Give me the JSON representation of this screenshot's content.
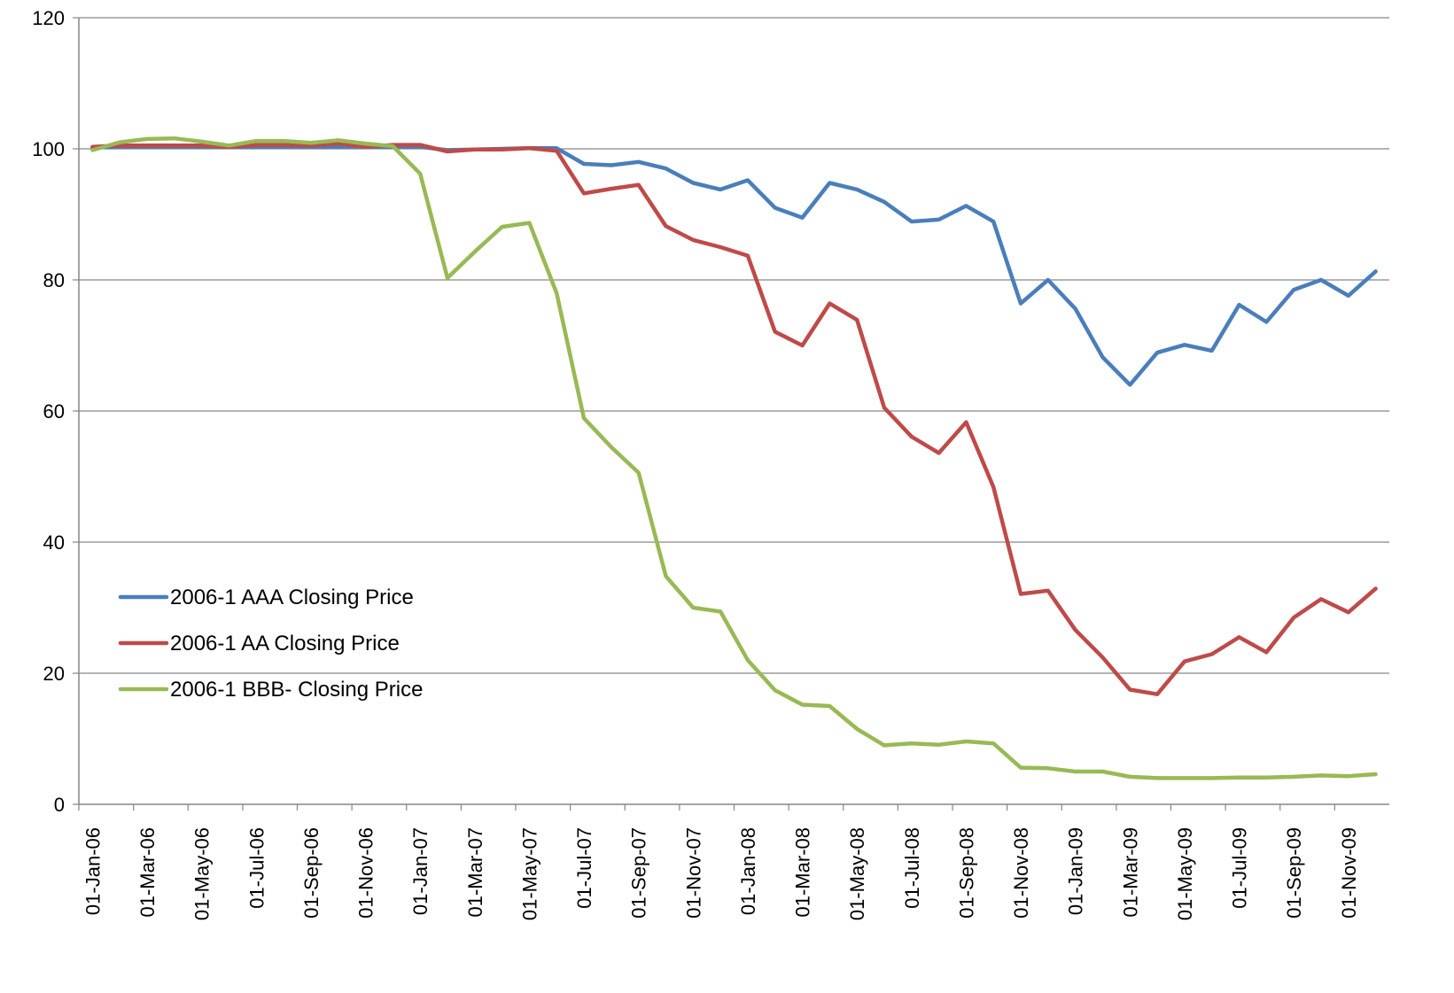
{
  "chart_data": {
    "type": "line",
    "title": "",
    "xlabel": "",
    "ylabel": "",
    "ylim": [
      0,
      120
    ],
    "y_ticks": [
      "0",
      "20",
      "40",
      "60",
      "80",
      "100",
      "120"
    ],
    "x_tick_labels": [
      "01-Jan-06",
      "01-Mar-06",
      "01-May-06",
      "01-Jul-06",
      "01-Sep-06",
      "01-Nov-06",
      "01-Jan-07",
      "01-Mar-07",
      "01-May-07",
      "01-Jul-07",
      "01-Sep-07",
      "01-Nov-07",
      "01-Jan-08",
      "01-Mar-08",
      "01-May-08",
      "01-Jul-08",
      "01-Sep-08",
      "01-Nov-08",
      "01-Jan-09",
      "01-Mar-09",
      "01-May-09",
      "01-Jul-09",
      "01-Sep-09",
      "01-Nov-09"
    ],
    "x": [
      "Jan-06",
      "Feb-06",
      "Mar-06",
      "Apr-06",
      "May-06",
      "Jun-06",
      "Jul-06",
      "Aug-06",
      "Sep-06",
      "Oct-06",
      "Nov-06",
      "Dec-06",
      "Jan-07",
      "Feb-07",
      "Mar-07",
      "Apr-07",
      "May-07",
      "Jun-07",
      "Jul-07",
      "Aug-07",
      "Sep-07",
      "Oct-07",
      "Nov-07",
      "Dec-07",
      "Jan-08",
      "Feb-08",
      "Mar-08",
      "Apr-08",
      "May-08",
      "Jun-08",
      "Jul-08",
      "Aug-08",
      "Sep-08",
      "Oct-08",
      "Nov-08",
      "Dec-08",
      "Jan-09",
      "Feb-09",
      "Mar-09",
      "Apr-09",
      "May-09",
      "Jun-09",
      "Jul-09",
      "Aug-09",
      "Sep-09",
      "Oct-09",
      "Nov-09",
      "Dec-09"
    ],
    "grid": true,
    "legend_position": "lower-left",
    "series": [
      {
        "name": "2006-1 AAA Closing Price",
        "color": "#4a7ebb",
        "values": [
          100.2,
          100.3,
          100.3,
          100.3,
          100.3,
          100.3,
          100.3,
          100.3,
          100.3,
          100.3,
          100.3,
          100.3,
          100.3,
          99.8,
          99.9,
          100.0,
          100.1,
          100.1,
          97.7,
          97.5,
          98.0,
          97.0,
          94.8,
          93.8,
          95.2,
          91.0,
          89.5,
          94.8,
          93.8,
          91.9,
          88.9,
          89.2,
          91.3,
          88.9,
          76.4,
          80.0,
          75.6,
          68.2,
          64.0,
          68.9,
          70.1,
          69.2,
          76.2,
          73.6,
          78.5,
          80.0,
          77.6,
          81.3
        ]
      },
      {
        "name": "2006-1 AA Closing Price",
        "color": "#be4b48",
        "values": [
          100.3,
          100.5,
          100.5,
          100.5,
          100.5,
          100.3,
          100.6,
          100.6,
          100.5,
          100.8,
          100.3,
          100.6,
          100.6,
          99.6,
          99.9,
          99.9,
          100.1,
          99.7,
          93.2,
          93.9,
          94.5,
          88.2,
          86.1,
          85.0,
          83.7,
          72.1,
          70.0,
          76.4,
          73.9,
          60.5,
          56.1,
          53.6,
          58.3,
          48.4,
          32.1,
          32.6,
          26.6,
          22.4,
          17.5,
          16.8,
          21.8,
          22.9,
          25.5,
          23.2,
          28.5,
          31.3,
          29.3,
          32.9
        ]
      },
      {
        "name": "2006-1 BBB- Closing Price",
        "color": "#98b954",
        "values": [
          99.8,
          101.0,
          101.5,
          101.6,
          101.1,
          100.5,
          101.2,
          101.2,
          100.9,
          101.3,
          100.8,
          100.4,
          96.2,
          80.3,
          84.3,
          88.1,
          88.7,
          78.0,
          58.9,
          54.5,
          50.6,
          34.8,
          30.0,
          29.4,
          22.0,
          17.4,
          15.2,
          15.0,
          11.5,
          9.0,
          9.3,
          9.1,
          9.6,
          9.3,
          5.6,
          5.5,
          5.0,
          5.0,
          4.2,
          4.0,
          4.0,
          4.0,
          4.1,
          4.1,
          4.2,
          4.4,
          4.3,
          4.6
        ]
      }
    ]
  }
}
